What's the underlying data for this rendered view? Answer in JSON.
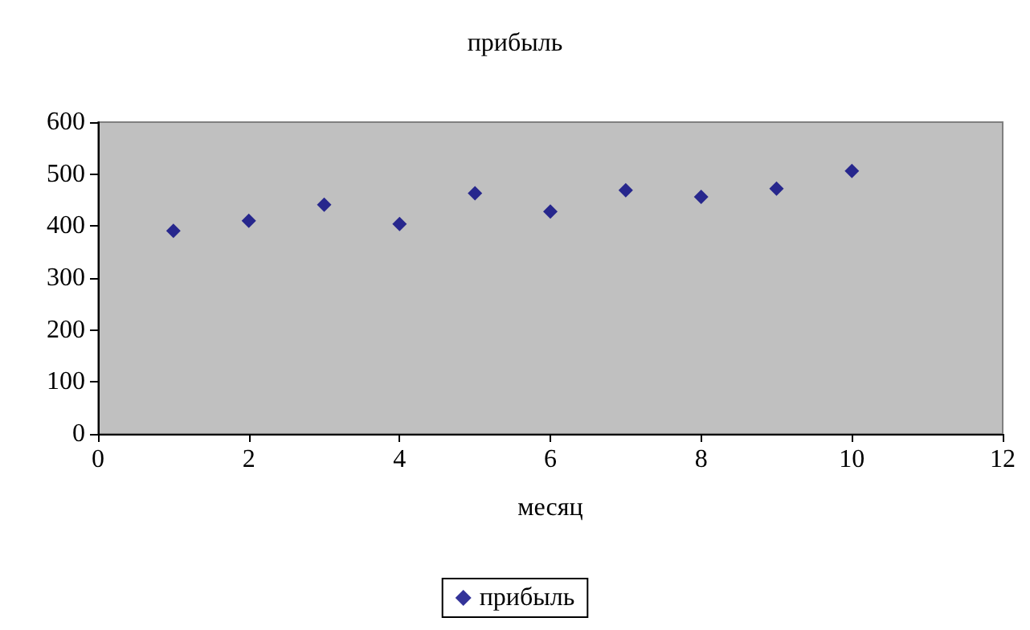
{
  "chart_data": {
    "type": "scatter",
    "title": "прибыль",
    "xlabel": "месяц",
    "x": [
      1,
      2,
      3,
      4,
      5,
      6,
      7,
      8,
      9,
      10
    ],
    "series": [
      {
        "name": "прибыль",
        "color": "#000080",
        "values": [
          391,
          410,
          441,
          404,
          463,
          428,
          469,
          456,
          472,
          506
        ]
      }
    ],
    "xlim": [
      0,
      12
    ],
    "xticks": [
      0,
      2,
      4,
      6,
      8,
      10,
      12
    ],
    "ylim": [
      0,
      600
    ],
    "yticks": [
      0,
      100,
      200,
      300,
      400,
      500,
      600
    ],
    "grid": false,
    "legend": "bottom",
    "marker": "diamond"
  }
}
